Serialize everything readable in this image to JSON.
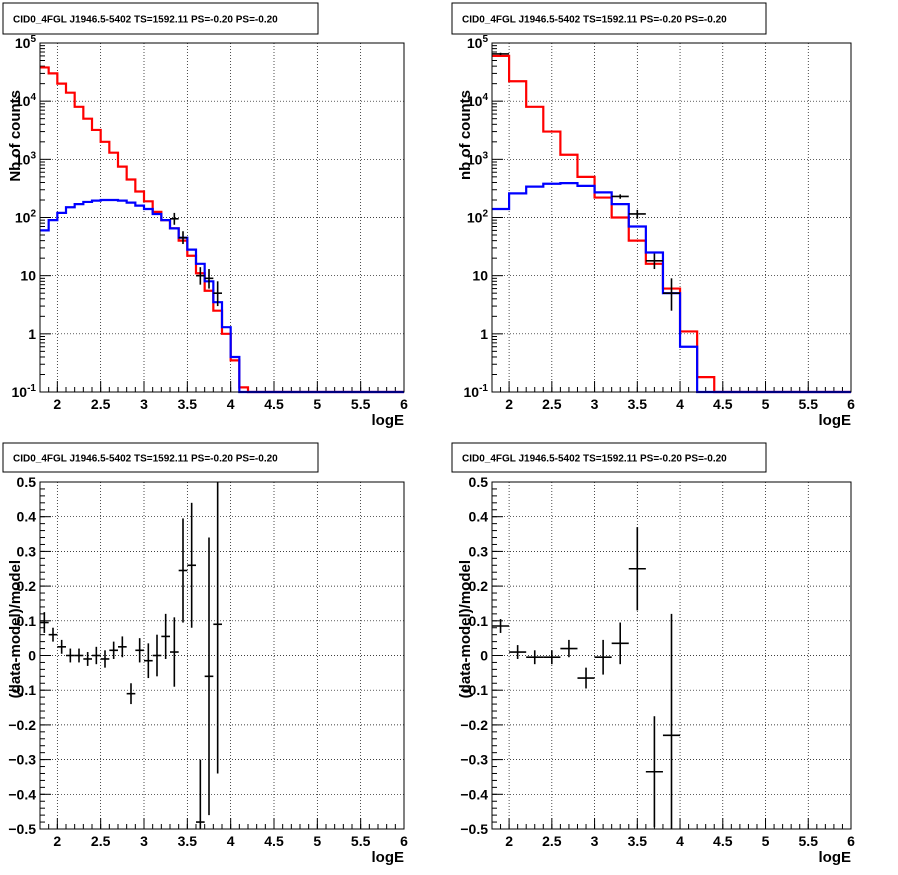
{
  "chart_data": [
    {
      "type": "step-histogram",
      "title": "CID0_4FGL J1946.5-5402 TS=1592.11 PS=-0.20 PS=-0.20",
      "xlabel": "logE",
      "ylabel": "Nb of counts",
      "ylog": true,
      "xlim": [
        1.8,
        6.0
      ],
      "ylim": [
        0.1,
        100000
      ],
      "x_ticks": [
        "2",
        "2.5",
        "3",
        "3.5",
        "4",
        "4.5",
        "5",
        "5.5",
        "6"
      ],
      "y_ticks": [
        "10^-1",
        "1",
        "10",
        "10^2",
        "10^3",
        "10^4",
        "10^5"
      ],
      "grid": true,
      "bin_edges": [
        1.8,
        1.9,
        2.0,
        2.1,
        2.2,
        2.3,
        2.4,
        2.5,
        2.6,
        2.7,
        2.8,
        2.9,
        3.0,
        3.1,
        3.2,
        3.3,
        3.4,
        3.5,
        3.6,
        3.7,
        3.8,
        3.9,
        4.0,
        4.1,
        4.2,
        4.3,
        4.4,
        4.5,
        4.6,
        4.7,
        4.8,
        4.9,
        5.0,
        5.1,
        5.2,
        5.3,
        5.4,
        5.5,
        5.6,
        5.7,
        5.8,
        5.9,
        6.0
      ],
      "series": [
        {
          "color": "#ff0000",
          "style": "step",
          "values": [
            38000,
            30000,
            20000,
            14000,
            8000,
            5000,
            3200,
            2000,
            1300,
            750,
            450,
            280,
            190,
            125,
            90,
            65,
            40,
            22,
            11,
            5.5,
            2.5,
            1.0,
            0.35,
            0.12,
            0.1,
            0.1,
            0.1,
            0.1,
            0.1,
            0.1,
            0.1,
            0.1,
            0.1,
            0.1,
            0.1,
            0.1,
            0.1,
            0.1,
            0.1,
            0.1,
            0.1,
            0.1
          ]
        },
        {
          "color": "#0000ff",
          "style": "step",
          "values": [
            60,
            90,
            120,
            150,
            170,
            185,
            195,
            200,
            200,
            195,
            180,
            160,
            140,
            115,
            90,
            65,
            45,
            28,
            16,
            8,
            3.5,
            1.3,
            0.4,
            0.1,
            0.1,
            0.1,
            0.1,
            0.1,
            0.1,
            0.1,
            0.1,
            0.1,
            0.1,
            0.1,
            0.1,
            0.1,
            0.1,
            0.1,
            0.1,
            0.1,
            0.1,
            0.1
          ]
        },
        {
          "color": "#000000",
          "style": "errorbar",
          "points": [
            {
              "x": 3.35,
              "y": 95,
              "ylo": 75,
              "yhi": 120
            },
            {
              "x": 3.45,
              "y": 45,
              "ylo": 35,
              "yhi": 58
            },
            {
              "x": 3.65,
              "y": 10,
              "ylo": 7,
              "yhi": 14
            },
            {
              "x": 3.75,
              "y": 9,
              "ylo": 6,
              "yhi": 13
            },
            {
              "x": 3.85,
              "y": 5,
              "ylo": 3,
              "yhi": 8
            }
          ]
        }
      ]
    },
    {
      "type": "step-histogram",
      "title": "CID0_4FGL J1946.5-5402 TS=1592.11 PS=-0.20 PS=-0.20",
      "xlabel": "logE",
      "ylabel": "nb of counts",
      "ylog": true,
      "xlim": [
        1.8,
        6.0
      ],
      "ylim": [
        0.1,
        100000
      ],
      "x_ticks": [
        "2",
        "2.5",
        "3",
        "3.5",
        "4",
        "4.5",
        "5",
        "5.5",
        "6"
      ],
      "y_ticks": [
        "10^-1",
        "1",
        "10",
        "10^2",
        "10^3",
        "10^4",
        "10^5"
      ],
      "grid": true,
      "bin_edges": [
        1.8,
        2.0,
        2.2,
        2.4,
        2.6,
        2.8,
        3.0,
        3.2,
        3.4,
        3.6,
        3.8,
        4.0,
        4.2,
        4.4,
        4.6,
        4.8,
        5.0,
        5.2,
        5.4,
        5.6,
        5.8,
        6.0
      ],
      "series": [
        {
          "color": "#ff0000",
          "style": "step",
          "values": [
            60000,
            22000,
            8000,
            3000,
            1200,
            500,
            220,
            100,
            40,
            16,
            6,
            1.1,
            0.18,
            0.1,
            0.1,
            0.1,
            0.1,
            0.1,
            0.1,
            0.1,
            0.1
          ]
        },
        {
          "color": "#0000ff",
          "style": "step",
          "values": [
            140,
            260,
            340,
            380,
            390,
            350,
            270,
            170,
            70,
            25,
            5,
            0.6,
            0.1,
            0.1,
            0.1,
            0.1,
            0.1,
            0.1,
            0.1,
            0.1,
            0.1
          ]
        },
        {
          "color": "#000000",
          "style": "errorbar",
          "points": [
            {
              "x": 1.9,
              "y": 65000,
              "ylo": 62000,
              "yhi": 68000
            },
            {
              "x": 3.3,
              "y": 230,
              "ylo": 210,
              "yhi": 250
            },
            {
              "x": 3.5,
              "y": 115,
              "ylo": 95,
              "yhi": 135
            },
            {
              "x": 3.7,
              "y": 18,
              "ylo": 13,
              "yhi": 24
            },
            {
              "x": 3.9,
              "y": 5,
              "ylo": 2.5,
              "yhi": 9
            }
          ]
        }
      ]
    },
    {
      "type": "errorbar",
      "title": "CID0_4FGL J1946.5-5402 TS=1592.11 PS=-0.20 PS=-0.20",
      "xlabel": "logE",
      "ylabel": "(data-model)/model",
      "xlim": [
        1.8,
        6.0
      ],
      "ylim": [
        -0.5,
        0.5
      ],
      "x_ticks": [
        "2",
        "2.5",
        "3",
        "3.5",
        "4",
        "4.5",
        "5",
        "5.5",
        "6"
      ],
      "y_ticks": [
        "−0.5",
        "−0.4",
        "−0.3",
        "−0.2",
        "−0.1",
        "0",
        "0.1",
        "0.2",
        "0.3",
        "0.4",
        "0.5"
      ],
      "grid": true,
      "points": [
        {
          "x": 1.85,
          "y": 0.095,
          "err": 0.03
        },
        {
          "x": 1.95,
          "y": 0.06,
          "err": 0.02
        },
        {
          "x": 2.05,
          "y": 0.025,
          "err": 0.02
        },
        {
          "x": 2.15,
          "y": 0.0,
          "err": 0.02
        },
        {
          "x": 2.25,
          "y": 0.0,
          "err": 0.02
        },
        {
          "x": 2.35,
          "y": -0.01,
          "err": 0.02
        },
        {
          "x": 2.45,
          "y": 0.0,
          "err": 0.025
        },
        {
          "x": 2.55,
          "y": -0.01,
          "err": 0.025
        },
        {
          "x": 2.65,
          "y": 0.015,
          "err": 0.025
        },
        {
          "x": 2.75,
          "y": 0.025,
          "err": 0.03
        },
        {
          "x": 2.85,
          "y": -0.11,
          "err": 0.03
        },
        {
          "x": 2.95,
          "y": 0.015,
          "err": 0.035
        },
        {
          "x": 3.05,
          "y": -0.015,
          "err": 0.05
        },
        {
          "x": 3.15,
          "y": 0.0,
          "err": 0.06
        },
        {
          "x": 3.25,
          "y": 0.055,
          "err": 0.065
        },
        {
          "x": 3.35,
          "y": 0.01,
          "err": 0.1
        },
        {
          "x": 3.45,
          "y": 0.245,
          "err": 0.15
        },
        {
          "x": 3.55,
          "y": 0.26,
          "err": 0.18
        },
        {
          "x": 3.65,
          "y": -0.48,
          "err": 0.18
        },
        {
          "x": 3.75,
          "y": -0.06,
          "err": 0.4
        },
        {
          "x": 3.85,
          "y": 0.09,
          "err": 0.43
        }
      ]
    },
    {
      "type": "errorbar",
      "title": "CID0_4FGL J1946.5-5402 TS=1592.11 PS=-0.20 PS=-0.20",
      "xlabel": "logE",
      "ylabel": "(data-model)/model",
      "xlim": [
        1.8,
        6.0
      ],
      "ylim": [
        -0.5,
        0.5
      ],
      "x_ticks": [
        "2",
        "2.5",
        "3",
        "3.5",
        "4",
        "4.5",
        "5",
        "5.5",
        "6"
      ],
      "y_ticks": [
        "−0.5",
        "−0.4",
        "−0.3",
        "−0.2",
        "−0.1",
        "0",
        "0.1",
        "0.2",
        "0.3",
        "0.4",
        "0.5"
      ],
      "grid": true,
      "points": [
        {
          "x": 1.9,
          "y": 0.085,
          "err": 0.02
        },
        {
          "x": 2.1,
          "y": 0.01,
          "err": 0.02
        },
        {
          "x": 2.3,
          "y": -0.005,
          "err": 0.02
        },
        {
          "x": 2.5,
          "y": -0.005,
          "err": 0.02
        },
        {
          "x": 2.7,
          "y": 0.02,
          "err": 0.025
        },
        {
          "x": 2.9,
          "y": -0.065,
          "err": 0.03
        },
        {
          "x": 3.1,
          "y": -0.005,
          "err": 0.05
        },
        {
          "x": 3.3,
          "y": 0.035,
          "err": 0.06
        },
        {
          "x": 3.5,
          "y": 0.25,
          "err": 0.12
        },
        {
          "x": 3.7,
          "y": -0.335,
          "err": 0.16
        },
        {
          "x": 3.9,
          "y": -0.23,
          "err": 0.35
        }
      ]
    }
  ]
}
